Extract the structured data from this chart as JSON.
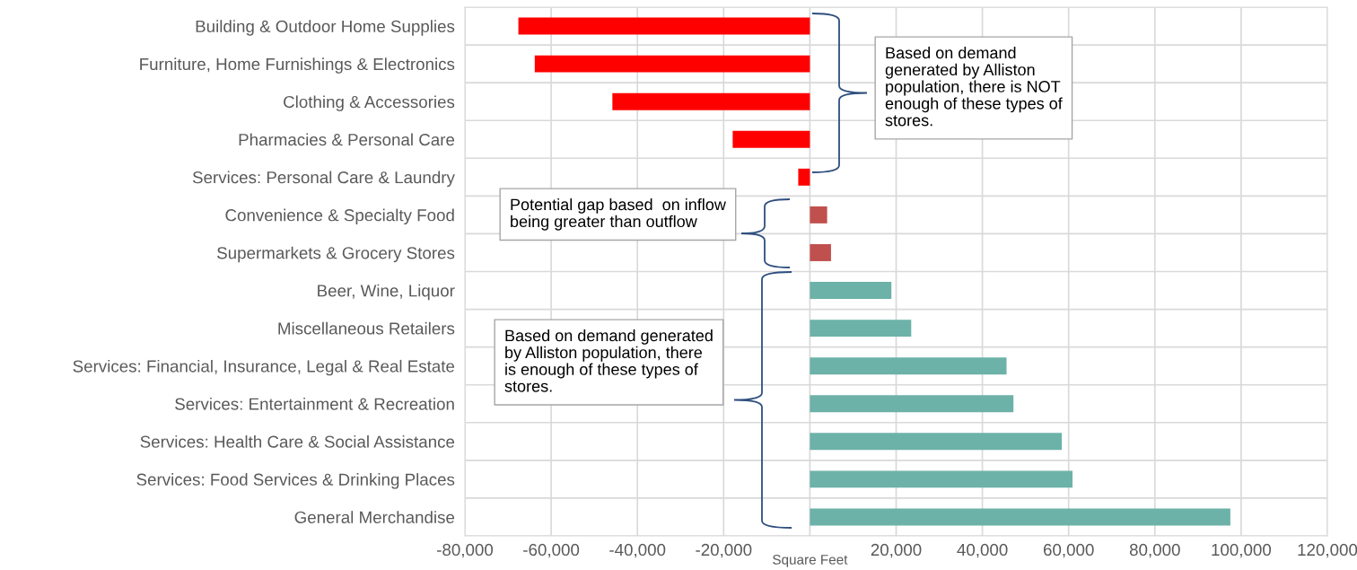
{
  "chart_data": {
    "type": "bar",
    "orientation": "horizontal",
    "categories": [
      "Building & Outdoor Home Supplies",
      "Furniture, Home Furnishings & Electronics",
      "Clothing & Accessories",
      "Pharmacies & Personal Care",
      "Services: Personal Care & Laundry",
      "Convenience & Specialty Food",
      "Supermarkets & Grocery Stores",
      "Beer, Wine, Liquor",
      "Miscellaneous Retailers",
      "Services: Financial, Insurance, Legal & Real Estate",
      "Services: Entertainment & Recreation",
      "Services: Health Care & Social Assistance",
      "Services: Food Services & Drinking Places",
      "General Merchandise"
    ],
    "values": [
      -67600,
      -63800,
      -45800,
      -17900,
      -2700,
      4000,
      4900,
      18900,
      23500,
      45600,
      47200,
      58400,
      60900,
      97500
    ],
    "colors": [
      "#ff0000",
      "#ff0000",
      "#ff0000",
      "#ff0000",
      "#ff0000",
      "#c0504d",
      "#c0504d",
      "#6cb2a8",
      "#6cb2a8",
      "#6cb2a8",
      "#6cb2a8",
      "#6cb2a8",
      "#6cb2a8",
      "#6cb2a8"
    ],
    "xlim": [
      -80000,
      120000
    ],
    "xticks": [
      {
        "value": -80000,
        "label": "-80,000"
      },
      {
        "value": -60000,
        "label": "-60,000"
      },
      {
        "value": -40000,
        "label": "-40,000"
      },
      {
        "value": -20000,
        "label": "-20,000"
      },
      {
        "value": 0,
        "label": null
      },
      {
        "value": 20000,
        "label": "20,000"
      },
      {
        "value": 40000,
        "label": "40,000"
      },
      {
        "value": 60000,
        "label": "60,000"
      },
      {
        "value": 80000,
        "label": "80,000"
      },
      {
        "value": 100000,
        "label": "100,000"
      },
      {
        "value": 120000,
        "label": "120,000"
      }
    ],
    "xlabel": "Square Feet",
    "grid": true,
    "annotations": [
      "Based on demand generated by Alliston population, there is NOT enough of these types of stores.",
      "Potential gap based  on inflow being greater than outflow",
      "Based on demand generated by Alliston population, there is enough of these types of stores."
    ]
  }
}
